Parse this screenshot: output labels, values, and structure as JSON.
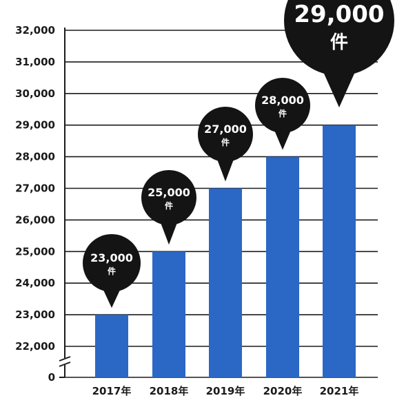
{
  "chart_data": {
    "type": "bar",
    "categories": [
      "2017年",
      "2018年",
      "2019年",
      "2020年",
      "2021年"
    ],
    "values": [
      23000,
      25000,
      27000,
      28000,
      29000
    ],
    "value_labels": [
      "23,000",
      "25,000",
      "27,000",
      "28,000",
      "29,000"
    ],
    "value_unit": "件",
    "yticks": [
      0,
      22000,
      23000,
      24000,
      25000,
      26000,
      27000,
      28000,
      29000,
      30000,
      31000,
      32000
    ],
    "ytick_labels": [
      "0",
      "22,000",
      "23,000",
      "24,000",
      "25,000",
      "26,000",
      "27,000",
      "28,000",
      "29,000",
      "30,000",
      "31,000",
      "32,000"
    ],
    "ylim": [
      0,
      32000
    ],
    "axis_break": true,
    "grid": true,
    "bar_color": "#2b67c4",
    "bubble_color": "#141414",
    "label_color": "#ffffff"
  }
}
